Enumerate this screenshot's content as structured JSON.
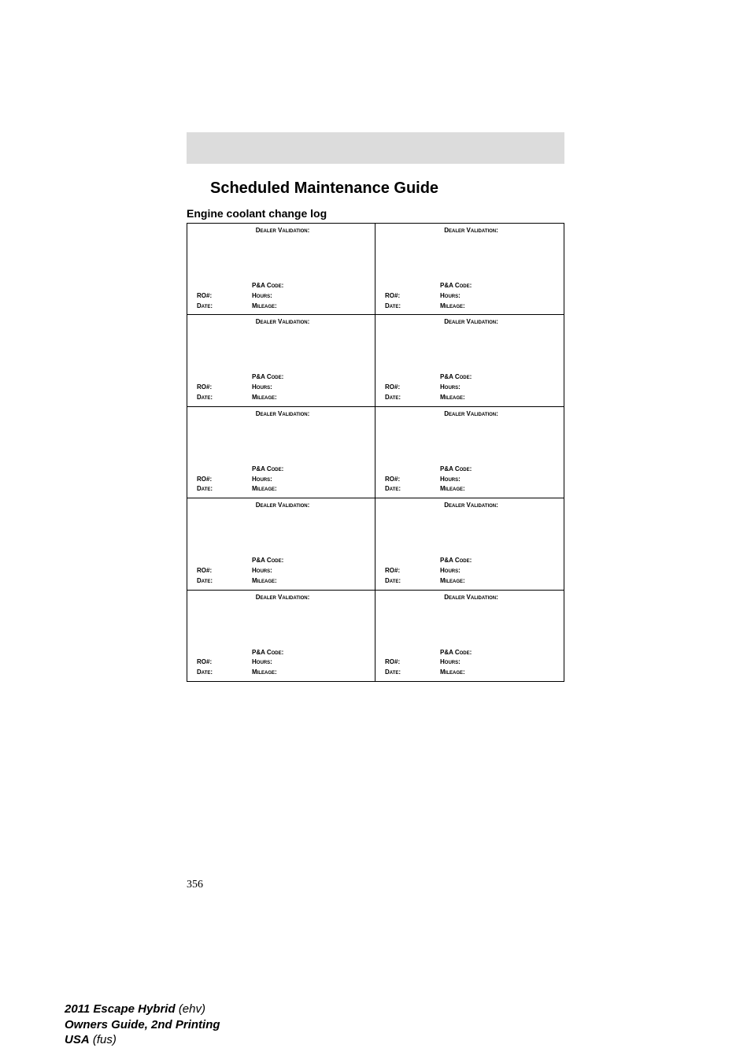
{
  "header": {
    "title": "Scheduled Maintenance Guide",
    "subtitle": "Engine coolant change log"
  },
  "log": {
    "dealer_validation": "Dealer Validation:",
    "pa_code": "P&A Code:",
    "ro": "RO#:",
    "hours": "Hours:",
    "date": "Date:",
    "mileage": "Mileage:"
  },
  "page_number": "356",
  "footer": {
    "vehicle": "2011 Escape Hybrid",
    "vehicle_code": "(ehv)",
    "guide": "Owners Guide, 2nd Printing",
    "region": "USA",
    "region_code": "(fus)"
  },
  "colors": {
    "gray_bar": "#dcdcdc",
    "border": "#000000",
    "background": "#ffffff"
  }
}
